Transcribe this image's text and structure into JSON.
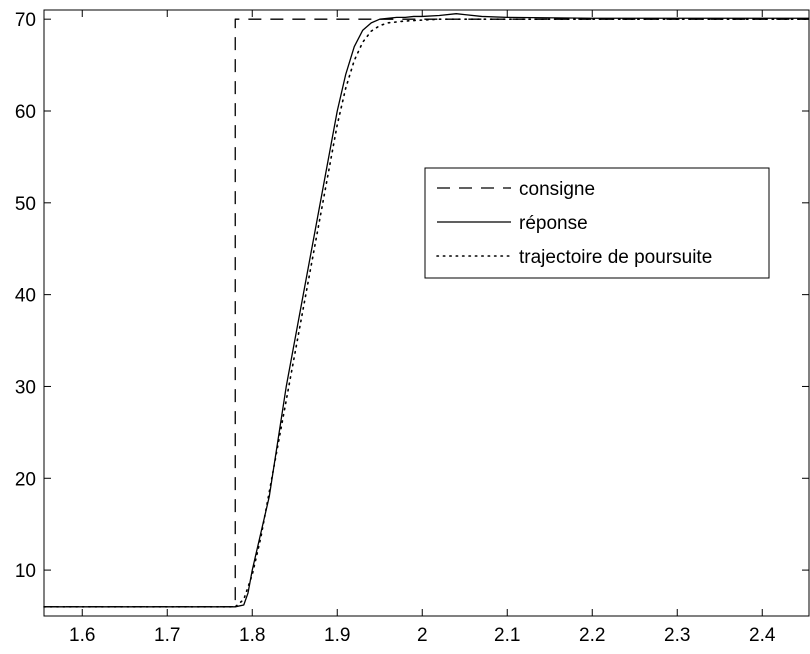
{
  "chart_data": {
    "type": "line",
    "title": "",
    "xlabel": "",
    "ylabel": "",
    "xlim": [
      1.555,
      2.455
    ],
    "ylim": [
      5,
      71
    ],
    "xticks": [
      1.6,
      1.7,
      1.8,
      1.9,
      2.0,
      2.1,
      2.2,
      2.3,
      2.4
    ],
    "xtick_labels": [
      "1.6",
      "1.7",
      "1.8",
      "1.9",
      "2",
      "2.1",
      "2.2",
      "2.3",
      "2.4"
    ],
    "yticks": [
      10,
      20,
      30,
      40,
      50,
      60,
      70
    ],
    "ytick_labels": [
      "10",
      "20",
      "30",
      "40",
      "50",
      "60",
      "70"
    ],
    "grid": false,
    "legend_position": "center-right",
    "series": [
      {
        "name": "consigne",
        "style": "dashed",
        "color": "#000000",
        "x": [
          1.555,
          1.78,
          1.78,
          2.455
        ],
        "y": [
          6,
          6,
          70,
          70
        ]
      },
      {
        "name": "réponse",
        "style": "solid",
        "color": "#000000",
        "x": [
          1.555,
          1.7,
          1.78,
          1.79,
          1.795,
          1.8,
          1.81,
          1.82,
          1.83,
          1.84,
          1.85,
          1.86,
          1.87,
          1.88,
          1.89,
          1.9,
          1.91,
          1.92,
          1.93,
          1.94,
          1.95,
          1.96,
          1.97,
          1.98,
          1.99,
          2.0,
          2.02,
          2.04,
          2.05,
          2.07,
          2.1,
          2.2,
          2.3,
          2.4,
          2.455
        ],
        "y": [
          6,
          6,
          6,
          6.2,
          7.5,
          10,
          14,
          18,
          24,
          30,
          35,
          40,
          45,
          50,
          55,
          60,
          64,
          67,
          68.8,
          69.6,
          70,
          70.1,
          70.2,
          70.2,
          70.3,
          70.3,
          70.4,
          70.6,
          70.5,
          70.3,
          70.2,
          70.1,
          70.1,
          70.1,
          70.1
        ]
      },
      {
        "name": "trajectoire de poursuite",
        "style": "dotted",
        "color": "#000000",
        "x": [
          1.555,
          1.78,
          1.79,
          1.8,
          1.81,
          1.82,
          1.83,
          1.84,
          1.85,
          1.86,
          1.87,
          1.88,
          1.89,
          1.9,
          1.91,
          1.92,
          1.93,
          1.94,
          1.95,
          1.96,
          1.98,
          2.0,
          2.02,
          2.05,
          2.1,
          2.2,
          2.455
        ],
        "y": [
          6,
          6,
          6.8,
          9.5,
          13.5,
          18.5,
          23.5,
          28.5,
          33.5,
          38.5,
          43.5,
          48.5,
          53.5,
          58.5,
          62.5,
          65.5,
          67.5,
          68.7,
          69.3,
          69.6,
          69.8,
          69.9,
          70,
          70,
          70,
          70,
          70
        ]
      }
    ]
  }
}
